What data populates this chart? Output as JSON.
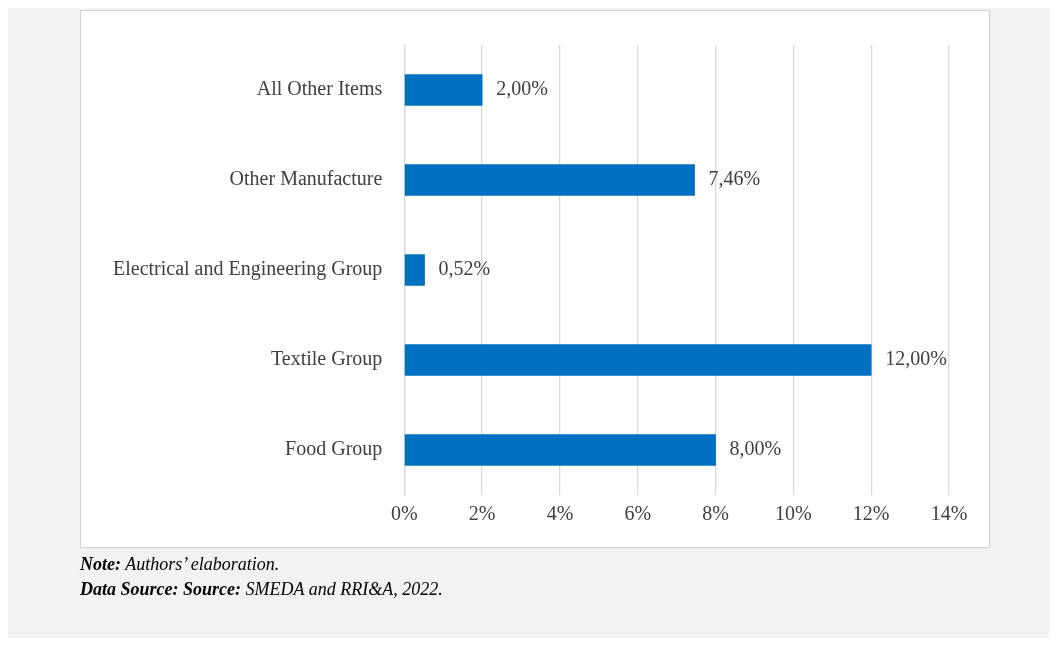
{
  "chart_data": {
    "type": "bar",
    "orientation": "horizontal",
    "categories": [
      "All Other Items",
      "Other Manufacture",
      "Electrical and Engineering Group",
      "Textile Group",
      "Food Group"
    ],
    "values": [
      2,
      7.46,
      0.52,
      12,
      8
    ],
    "color": "#0070c0",
    "value_labels": [
      "2,00%",
      "7,46%",
      "0,52%",
      "12,00%",
      "8,00%"
    ],
    "xlim": [
      0,
      14
    ],
    "xticks": [
      {
        "value": 0,
        "label": "0%"
      },
      {
        "value": 2,
        "label": "2%"
      },
      {
        "value": 4,
        "label": "4%"
      },
      {
        "value": 6,
        "label": "6%"
      },
      {
        "value": 8,
        "label": "8%"
      },
      {
        "value": 10,
        "label": "10%"
      },
      {
        "value": 12,
        "label": "12%"
      },
      {
        "value": 14,
        "label": "14%"
      }
    ],
    "grid": "x",
    "legend": false,
    "annotations": [
      "Note: Authors’ elaboration.",
      "Data Source: Source: SMEDA and RRI&A, 2022."
    ]
  }
}
